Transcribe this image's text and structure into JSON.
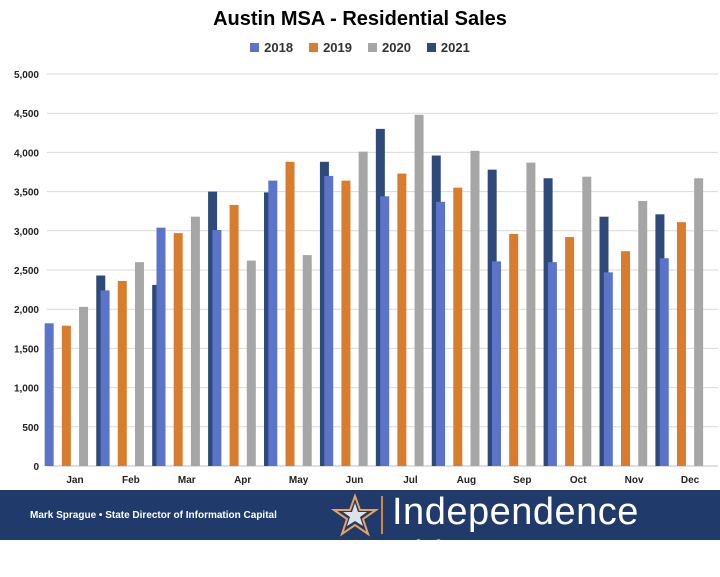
{
  "chart_data": {
    "type": "bar",
    "title": "Austin MSA - Residential Sales",
    "xlabel": "",
    "ylabel": "",
    "categories": [
      "Jan",
      "Feb",
      "Mar",
      "Apr",
      "May",
      "Jun",
      "Jul",
      "Aug",
      "Sep",
      "Oct",
      "Nov",
      "Dec"
    ],
    "ylim": [
      0,
      5000
    ],
    "yticks": [
      0,
      500,
      1000,
      1500,
      2000,
      2500,
      3000,
      3500,
      4000,
      4500,
      5000
    ],
    "ytick_labels": [
      "0",
      "500",
      "1,000",
      "1,500",
      "2,000",
      "2,500",
      "3,000",
      "3,500",
      "4,000",
      "4,500",
      "5,000"
    ],
    "grid": "horizontal",
    "legend_position": "top",
    "series": [
      {
        "name": "2018",
        "color": "#5b73c8",
        "values": [
          1820,
          2240,
          3040,
          3010,
          3640,
          3700,
          3440,
          3370,
          2610,
          2600,
          2470,
          2650
        ]
      },
      {
        "name": "2019",
        "color": "#d97c2e",
        "values": [
          1790,
          2360,
          2970,
          3330,
          3880,
          3640,
          3730,
          3550,
          2960,
          2920,
          2740,
          3110
        ]
      },
      {
        "name": "2020",
        "color": "#a6a6a6",
        "values": [
          2030,
          2600,
          3180,
          2620,
          2690,
          4010,
          4480,
          4020,
          3870,
          3690,
          3380,
          3670
        ]
      },
      {
        "name": "2021",
        "color": "#2e4a7a",
        "values": [
          2430,
          2310,
          3500,
          3490,
          3880,
          4300,
          3960,
          3780,
          3670,
          3180,
          3210,
          null
        ]
      }
    ]
  },
  "footer": {
    "credit": "Mark Sprague • State Director of Information Capital",
    "brand": "Independence Title",
    "logo": "star-logo-icon"
  }
}
